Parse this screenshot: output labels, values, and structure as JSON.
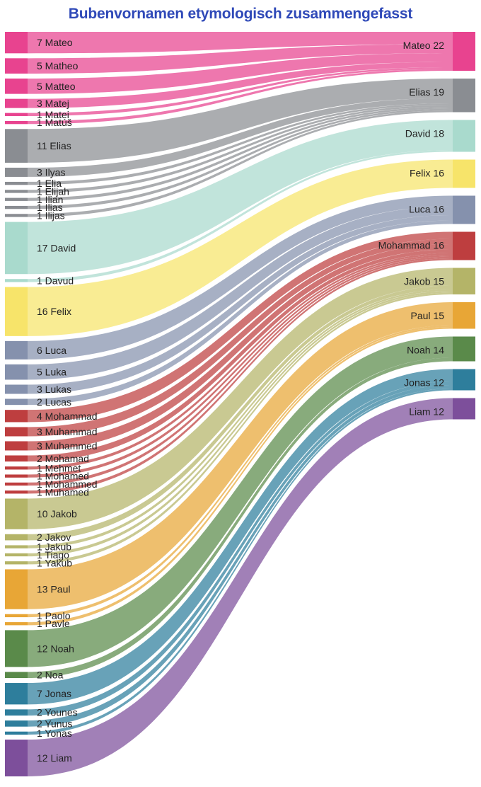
{
  "chart_data": {
    "type": "sankey",
    "title": "Bubenvornamen etymologisch zusammengefasst",
    "targets": [
      {
        "name": "Mateo",
        "value": 22,
        "color": "#e8438f"
      },
      {
        "name": "Elias",
        "value": 19,
        "color": "#8a8d92"
      },
      {
        "name": "David",
        "value": 18,
        "color": "#a9dacd"
      },
      {
        "name": "Felix",
        "value": 16,
        "color": "#f7e46a"
      },
      {
        "name": "Luca",
        "value": 16,
        "color": "#8591ad"
      },
      {
        "name": "Mohammad",
        "value": 16,
        "color": "#be3e3f"
      },
      {
        "name": "Jakob",
        "value": 15,
        "color": "#b4b468"
      },
      {
        "name": "Paul",
        "value": 15,
        "color": "#e8a636"
      },
      {
        "name": "Noah",
        "value": 14,
        "color": "#5a8a4a"
      },
      {
        "name": "Jonas",
        "value": 12,
        "color": "#2e7e9c"
      },
      {
        "name": "Liam",
        "value": 12,
        "color": "#7d4f9b"
      }
    ],
    "flows": [
      {
        "source": "Mateo",
        "value": 7,
        "target": "Mateo"
      },
      {
        "source": "Matheo",
        "value": 5,
        "target": "Mateo"
      },
      {
        "source": "Matteo",
        "value": 5,
        "target": "Mateo"
      },
      {
        "source": "Matej",
        "value": 3,
        "target": "Mateo"
      },
      {
        "source": "Matei",
        "value": 1,
        "target": "Mateo"
      },
      {
        "source": "Matúš",
        "value": 1,
        "target": "Mateo"
      },
      {
        "source": "Elias",
        "value": 11,
        "target": "Elias"
      },
      {
        "source": "Ilyas",
        "value": 3,
        "target": "Elias"
      },
      {
        "source": "Elia",
        "value": 1,
        "target": "Elias"
      },
      {
        "source": "Elijah",
        "value": 1,
        "target": "Elias"
      },
      {
        "source": "Ilian",
        "value": 1,
        "target": "Elias"
      },
      {
        "source": "Ilias",
        "value": 1,
        "target": "Elias"
      },
      {
        "source": "Ilijas",
        "value": 1,
        "target": "Elias"
      },
      {
        "source": "David",
        "value": 17,
        "target": "David"
      },
      {
        "source": "Davud",
        "value": 1,
        "target": "David"
      },
      {
        "source": "Felix",
        "value": 16,
        "target": "Felix"
      },
      {
        "source": "Luca",
        "value": 6,
        "target": "Luca"
      },
      {
        "source": "Luka",
        "value": 5,
        "target": "Luca"
      },
      {
        "source": "Lukas",
        "value": 3,
        "target": "Luca"
      },
      {
        "source": "Lucas",
        "value": 2,
        "target": "Luca"
      },
      {
        "source": "Mohammad",
        "value": 4,
        "target": "Mohammad"
      },
      {
        "source": "Muhammad",
        "value": 3,
        "target": "Mohammad"
      },
      {
        "source": "Muhammed",
        "value": 3,
        "target": "Mohammad"
      },
      {
        "source": "Mohamad",
        "value": 2,
        "target": "Mohammad"
      },
      {
        "source": "Mehmet",
        "value": 1,
        "target": "Mohammad"
      },
      {
        "source": "Mohamed",
        "value": 1,
        "target": "Mohammad"
      },
      {
        "source": "Mohammed",
        "value": 1,
        "target": "Mohammad"
      },
      {
        "source": "Muhamed",
        "value": 1,
        "target": "Mohammad"
      },
      {
        "source": "Jakob",
        "value": 10,
        "target": "Jakob"
      },
      {
        "source": "Jakov",
        "value": 2,
        "target": "Jakob"
      },
      {
        "source": "Jakub",
        "value": 1,
        "target": "Jakob"
      },
      {
        "source": "Tiago",
        "value": 1,
        "target": "Jakob"
      },
      {
        "source": "Yakub",
        "value": 1,
        "target": "Jakob"
      },
      {
        "source": "Paul",
        "value": 13,
        "target": "Paul"
      },
      {
        "source": "Paolo",
        "value": 1,
        "target": "Paul"
      },
      {
        "source": "Pavle",
        "value": 1,
        "target": "Paul"
      },
      {
        "source": "Noah",
        "value": 12,
        "target": "Noah"
      },
      {
        "source": "Noa",
        "value": 2,
        "target": "Noah"
      },
      {
        "source": "Jonas",
        "value": 7,
        "target": "Jonas"
      },
      {
        "source": "Younes",
        "value": 2,
        "target": "Jonas"
      },
      {
        "source": "Yunus",
        "value": 2,
        "target": "Jonas"
      },
      {
        "source": "Yonas",
        "value": 1,
        "target": "Jonas"
      },
      {
        "source": "Liam",
        "value": 12,
        "target": "Liam"
      }
    ]
  }
}
